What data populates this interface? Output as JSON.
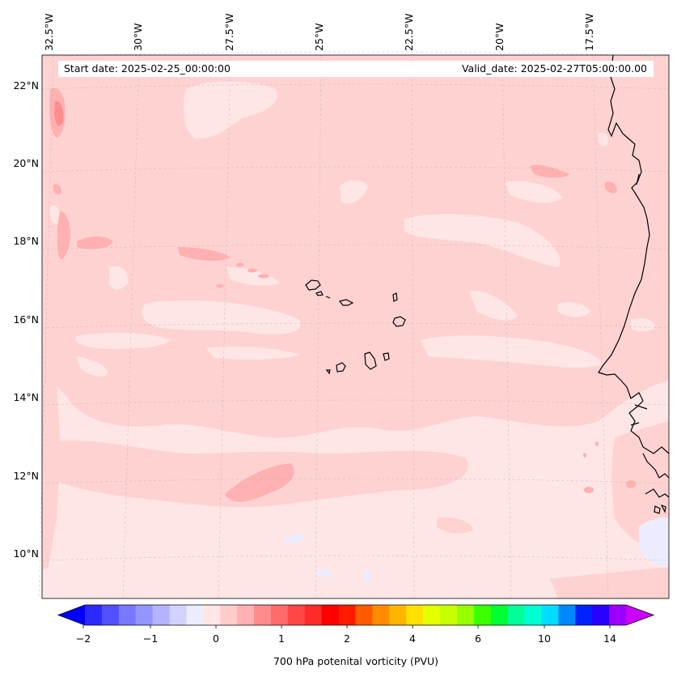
{
  "map": {
    "start_date": "Start date: 2025-02-25_00:00:00",
    "valid_date": "Valid_date: 2025-02-27T05:00:00.00",
    "lon_labels": [
      "32.5°W",
      "30°W",
      "27.5°W",
      "25°W",
      "22.5°W",
      "20°W",
      "17.5°W"
    ],
    "lat_labels": [
      "22°N",
      "20°N",
      "18°N",
      "16°N",
      "14°N",
      "12°N",
      "10°N"
    ],
    "field": "700 hPa potential vorticity",
    "background_color": "#ffe6e6",
    "island_group": "Cape Verde",
    "coastline_color": "#000000"
  },
  "colorbar": {
    "title": "700 hPa potenital vorticity (PVU)",
    "tick_labels": [
      "−2",
      "−1",
      "0",
      "1",
      "2",
      "4",
      "6",
      "10",
      "14"
    ],
    "colors": [
      "#0000ff",
      "#2a2aff",
      "#5050ff",
      "#7878ff",
      "#9494ff",
      "#b3b3ff",
      "#d2d2ff",
      "#ececff",
      "#ffe6e6",
      "#ffcccc",
      "#ffb0b0",
      "#ff8c8c",
      "#ff6a6a",
      "#ff4646",
      "#ff2a2a",
      "#ff0000",
      "#ff1a00",
      "#ff5a00",
      "#ff8c00",
      "#ffb400",
      "#ffe000",
      "#e6ff00",
      "#c8ff00",
      "#96ff00",
      "#3cff00",
      "#00ff32",
      "#00ff9a",
      "#00ffd2",
      "#00ddff",
      "#0088ff",
      "#0022ff",
      "#2a00ff",
      "#9900ff",
      "#cc00ff"
    ]
  }
}
